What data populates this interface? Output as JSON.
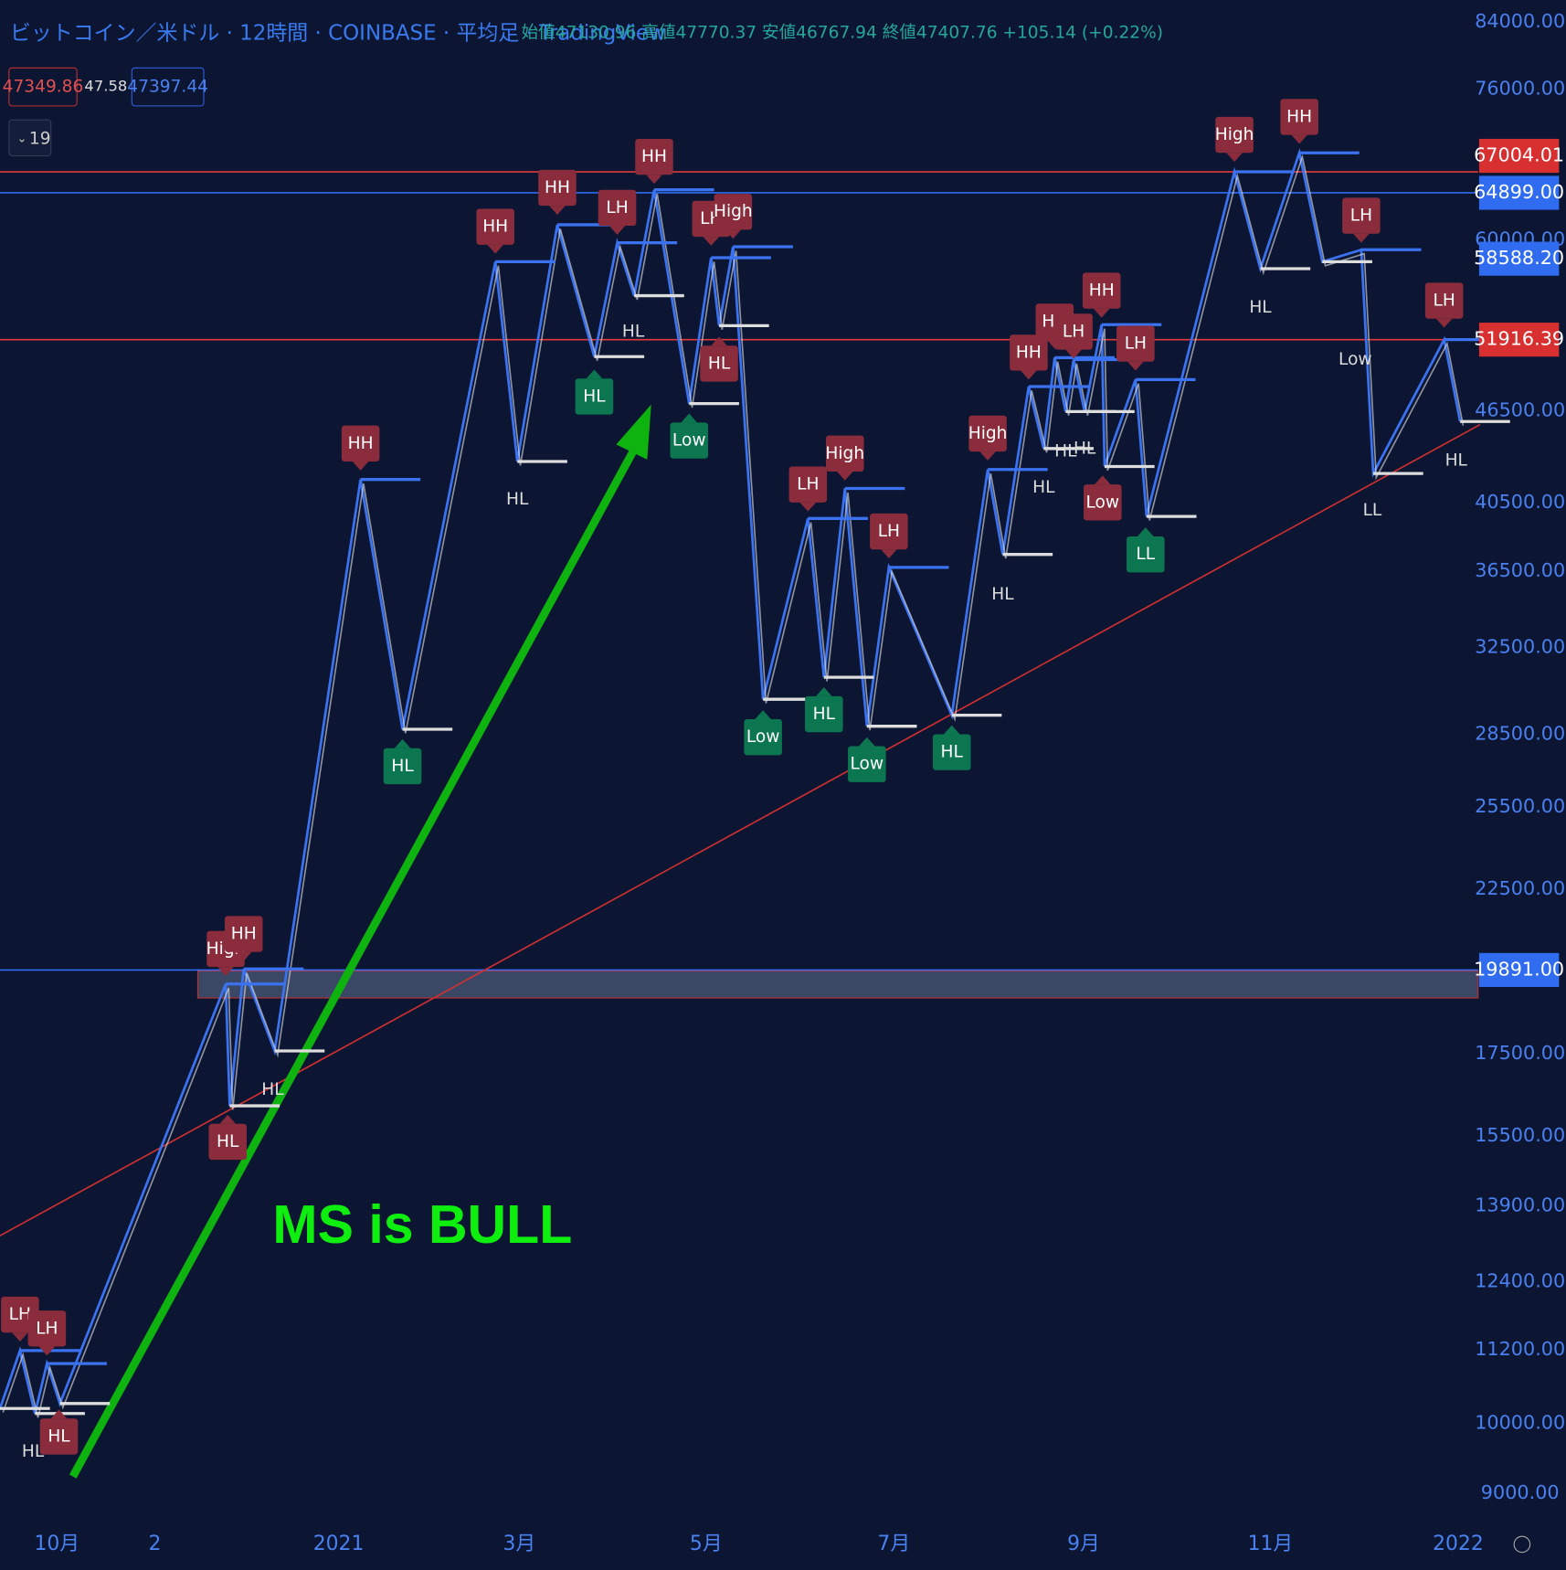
{
  "header": {
    "title": "ビットコイン／米ドル · 12時間 · COINBASE · 平均足 · TradingView",
    "ohlc": "始値47130.96 高値47770.37 安値46767.94 終値47407.76 +105.14 (+0.22%)",
    "bid": "47349.86",
    "spread": "47.58",
    "ask": "47397.44",
    "indicator": "19"
  },
  "price_axis": [
    "84000.00",
    "76000.00",
    "60000.00",
    "46500.00",
    "40500.00",
    "36500.00",
    "32500.00",
    "28500.00",
    "25500.00",
    "22500.00",
    "17500.00",
    "15500.00",
    "13900.00",
    "12400.00",
    "11200.00",
    "10000.00",
    "9000.00"
  ],
  "price_tags": [
    "67004.01",
    "64899.00",
    "58588.20",
    "51916.39",
    "19891.00"
  ],
  "time_axis": [
    "10月",
    "2",
    "2021",
    "3月",
    "5月",
    "7月",
    "9月",
    "11月",
    "2022"
  ],
  "red_markers": [
    "LH",
    "LH",
    "HL",
    "High",
    "HH",
    "HL",
    "HH",
    "HH",
    "HH",
    "LH",
    "HH",
    "LH",
    "High",
    "HL",
    "LH",
    "High",
    "LH",
    "High",
    "HH",
    "HH",
    "LH",
    "HH",
    "LH",
    "Low",
    "High",
    "HH",
    "LH",
    "LH"
  ],
  "green_markers": [
    "HL",
    "Low",
    "HL",
    "Low",
    "HL",
    "Low",
    "HL",
    "LL"
  ],
  "plain_labels": [
    "HL",
    "HL",
    "HL",
    "HL",
    "HL",
    "HL",
    "HL",
    "HL",
    "HL",
    "Low",
    "LL",
    "HL"
  ],
  "annotation": "MS is BULL"
}
